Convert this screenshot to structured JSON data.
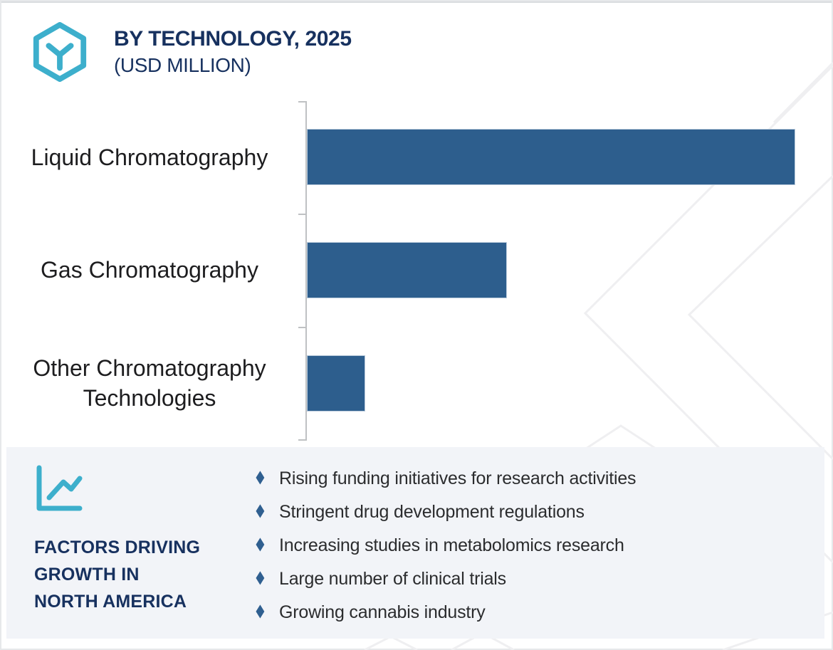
{
  "header": {
    "title": "BY TECHNOLOGY, 2025",
    "subtitle": "(USD MILLION)",
    "brand_icon": "hexagon-y-icon"
  },
  "chart_data": {
    "type": "bar",
    "orientation": "horizontal",
    "title": "BY TECHNOLOGY, 2025",
    "units": "USD MILLION",
    "categories": [
      "Liquid Chromatography",
      "Gas Chromatography",
      "Other Chromatography Technologies"
    ],
    "relative_values_pct_of_max": [
      100,
      41,
      12
    ],
    "value_labels_shown": false,
    "axis_tick_labels_shown": false,
    "grid": false,
    "legend_position": "none",
    "bar_color": "#2d5e8d",
    "axis_color": "#bfc1c3"
  },
  "factors_panel": {
    "icon": "line-chart-icon",
    "heading_lines": [
      "FACTORS DRIVING",
      "GROWTH IN",
      "NORTH AMERICA"
    ],
    "bullet_glyph": "♦",
    "bullets": [
      "Rising funding initiatives for research activities",
      "Stringent drug development regulations",
      "Increasing studies in metabolomics research",
      "Large number of clinical trials",
      "Growing cannabis industry"
    ]
  },
  "colors": {
    "accent_teal": "#3dafcc",
    "navy": "#17315f",
    "bar_blue": "#2d5e8d",
    "bullet_blue": "#2f5f90",
    "panel_background": "#f2f4f8",
    "watermark": "#efeff1",
    "text_dark": "#1d1d1f"
  }
}
